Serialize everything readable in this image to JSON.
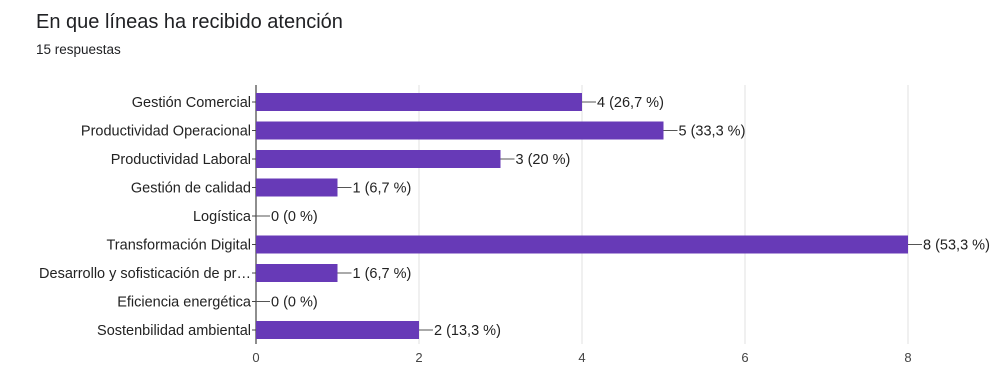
{
  "header": {
    "title": "En que líneas ha recibido atención",
    "responses": "15 respuestas"
  },
  "chart_data": {
    "type": "bar",
    "orientation": "horizontal",
    "categories": [
      "Gestión Comercial",
      "Productividad Operacional",
      "Productividad Laboral",
      "Gestión de calidad",
      "Logística",
      "Transformación Digital",
      "Desarrollo y sofisticación de pr…",
      "Eficiencia energética",
      "Sostenbilidad ambiental"
    ],
    "values": [
      4,
      5,
      3,
      1,
      0,
      8,
      1,
      0,
      2
    ],
    "value_labels": [
      "4 (26,7 %)",
      "5 (33,3 %)",
      "3 (20 %)",
      "1 (6,7 %)",
      "0 (0 %)",
      "8 (53,3 %)",
      "1 (6,7 %)",
      "0 (0 %)",
      "2 (13,3 %)"
    ],
    "x_ticks": [
      "0",
      "2",
      "4",
      "6",
      "8"
    ],
    "xlim": [
      0,
      8
    ],
    "grid": true,
    "bar_color": "#673ab7",
    "grid_color": "#e0e0e0",
    "axis_color": "#444444"
  }
}
